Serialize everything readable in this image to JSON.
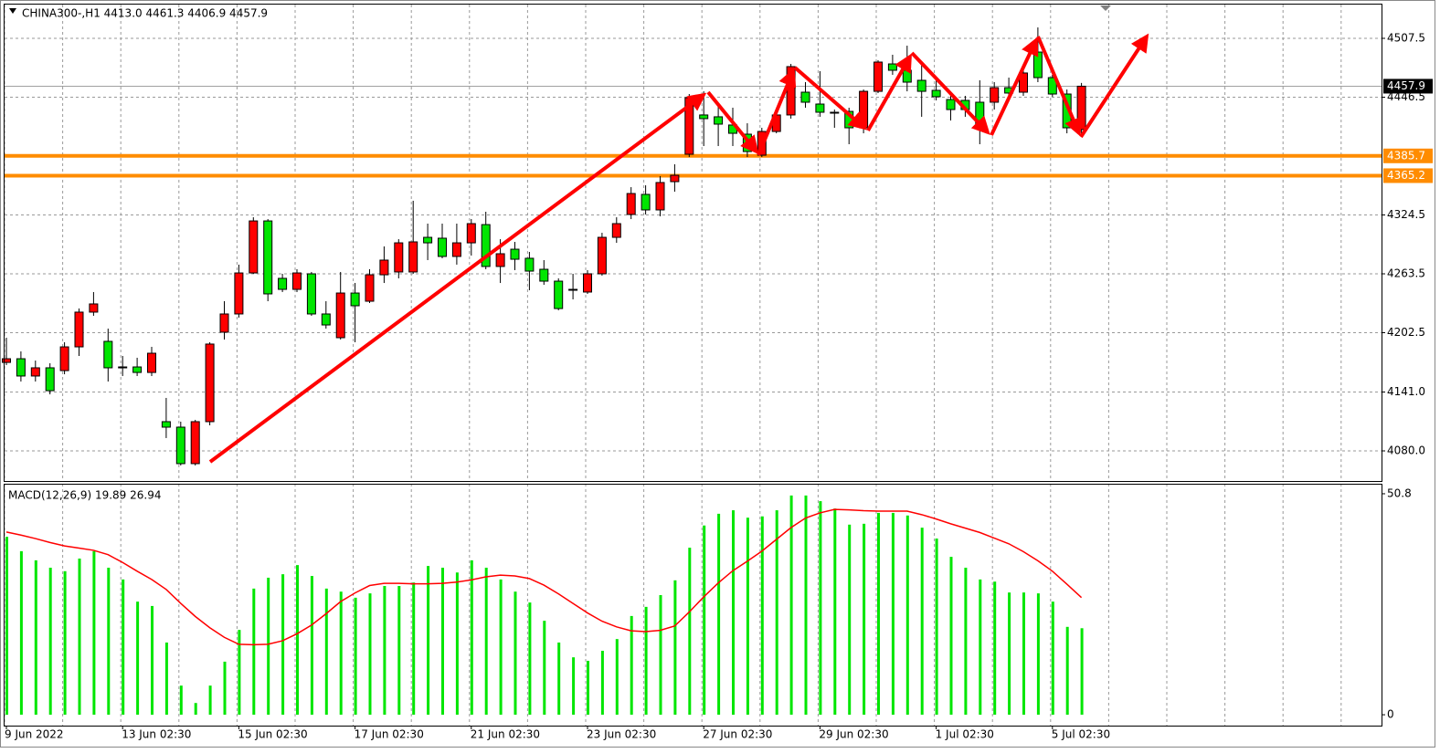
{
  "chart_data": [
    {
      "type": "candlestick",
      "title": "CHINA300-,H1  4413.0 4461.3 4406.9 4457.9",
      "categories": [
        "9 Jun 2022",
        null,
        null,
        null,
        null,
        null,
        null,
        null,
        "13 Jun 02:30",
        null,
        null,
        null,
        null,
        null,
        null,
        null,
        "15 Jun 02:30",
        null,
        null,
        null,
        null,
        null,
        null,
        null,
        "17 Jun 02:30",
        null,
        null,
        null,
        null,
        null,
        null,
        null,
        "21 Jun 02:30",
        null,
        null,
        null,
        null,
        null,
        null,
        null,
        "23 Jun 02:30",
        null,
        null,
        null,
        null,
        null,
        null,
        null,
        "27 Jun 02:30",
        null,
        null,
        null,
        null,
        null,
        null,
        null,
        "29 Jun 02:30",
        null,
        null,
        null,
        null,
        null,
        null,
        null,
        "1 Jul 02:30",
        null,
        null,
        null,
        null,
        null,
        null,
        null,
        "5 Jul 02:30",
        null,
        null
      ],
      "open": [
        4171.7,
        4175.5,
        4157.6,
        4166.1,
        4163.2,
        4187.8,
        4223.8,
        4193.5,
        4167.0,
        4167.0,
        4161.3,
        4110.3,
        4104.6,
        4066.8,
        4110.3,
        4203.0,
        4221.9,
        4264.4,
        4318.3,
        4258.8,
        4247.4,
        4263.5,
        4221.9,
        4197.3,
        4243.6,
        4235.1,
        4262.5,
        4265.4,
        4265.4,
        4301.3,
        4300.4,
        4281.5,
        4295.6,
        4314.5,
        4271.1,
        4289.0,
        4279.6,
        4268.2,
        4255.9,
        4246.5,
        4244.6,
        4263.5,
        4301.3,
        4325.0,
        4345.8,
        4329.7,
        4359.0,
        4387.4,
        4428.1,
        4426.2,
        4417.7,
        4408.2,
        4386.4,
        4411.0,
        4428.1,
        4451.7,
        4439.4,
        4430.9,
        4431.8,
        4414.8,
        4452.6,
        4481.0,
        4474.4,
        4464.0,
        4453.6,
        4444.1,
        4443.2,
        4441.3,
        4441.3,
        4456.4,
        4451.7,
        4493.3,
        4466.8,
        4449.8,
        4413.0
      ],
      "high": [
        4197.3,
        4183.1,
        4173.6,
        4170.8,
        4192.6,
        4227.5,
        4244.6,
        4206.7,
        4178.4,
        4176.5,
        4187.8,
        4134.9,
        4110.3,
        4112.2,
        4192.6,
        4235.1,
        4273.0,
        4322.1,
        4320.2,
        4263.5,
        4268.2,
        4265.4,
        4235.1,
        4265.4,
        4254.0,
        4268.2,
        4291.9,
        4299.4,
        4339.2,
        4315.5,
        4315.5,
        4315.5,
        4320.2,
        4327.8,
        4299.4,
        4296.6,
        4286.2,
        4277.7,
        4258.8,
        4263.5,
        4267.3,
        4306.0,
        4322.1,
        4353.3,
        4355.2,
        4364.7,
        4377.0,
        4449.8,
        4452.6,
        4438.5,
        4435.6,
        4419.5,
        4414.8,
        4433.7,
        4481.0,
        4462.1,
        4473.5,
        4433.7,
        4435.6,
        4454.5,
        4484.8,
        4490.5,
        4499.9,
        4481.0,
        4466.8,
        4452.6,
        4447.9,
        4464.0,
        4462.1,
        4466.8,
        4476.3,
        4518.8,
        4469.7,
        4454.5,
        4461.3
      ],
      "low": [
        4168.9,
        4151.9,
        4151.9,
        4138.6,
        4159.4,
        4178.4,
        4220.0,
        4151.9,
        4157.6,
        4157.6,
        4157.6,
        4093.3,
        4064.9,
        4064.9,
        4106.5,
        4195.4,
        4218.1,
        4263.5,
        4235.1,
        4244.6,
        4244.6,
        4220.0,
        4206.7,
        4195.4,
        4192.6,
        4233.2,
        4254.0,
        4258.8,
        4263.5,
        4277.7,
        4279.6,
        4273.0,
        4282.4,
        4268.2,
        4254.0,
        4267.3,
        4246.5,
        4252.1,
        4225.7,
        4237.0,
        4242.7,
        4261.6,
        4295.6,
        4320.2,
        4325.0,
        4323.1,
        4348.6,
        4384.5,
        4395.9,
        4395.9,
        4395.9,
        4384.5,
        4384.5,
        4409.1,
        4424.3,
        4435.6,
        4426.2,
        4414.8,
        4397.8,
        4409.1,
        4450.8,
        4469.7,
        4452.6,
        4426.2,
        4443.2,
        4422.4,
        4426.2,
        4397.8,
        4433.7,
        4447.9,
        4447.9,
        4462.1,
        4447.0,
        4409.1,
        4406.9
      ],
      "close": [
        4175.5,
        4157.6,
        4166.1,
        4142.4,
        4187.8,
        4223.8,
        4232.3,
        4166.1,
        4166.1,
        4161.3,
        4181.2,
        4104.6,
        4066.8,
        4110.3,
        4190.7,
        4221.9,
        4264.4,
        4318.3,
        4242.7,
        4247.4,
        4264.4,
        4221.9,
        4210.5,
        4243.6,
        4230.4,
        4262.5,
        4277.7,
        4295.6,
        4296.6,
        4295.6,
        4281.5,
        4295.6,
        4315.5,
        4271.1,
        4284.3,
        4278.6,
        4266.3,
        4255.9,
        4227.5,
        4247.4,
        4263.5,
        4301.3,
        4315.5,
        4346.7,
        4329.7,
        4358.1,
        4365.6,
        4446.0,
        4424.3,
        4418.6,
        4409.1,
        4390.2,
        4411.0,
        4428.1,
        4478.2,
        4441.3,
        4430.9,
        4430.9,
        4414.8,
        4452.6,
        4482.9,
        4474.4,
        4462.1,
        4452.6,
        4447.0,
        4433.7,
        4433.7,
        4414.8,
        4456.4,
        4450.8,
        4471.6,
        4466.8,
        4449.8,
        4414.8,
        4457.9
      ],
      "up_color": "#ff0000",
      "down_color": "#00e600",
      "ylim": [
        4048.8,
        4542.5
      ],
      "yticks": [
        4507.5,
        4446.5,
        4324.5,
        4263.5,
        4202.5,
        {
          "value": 4141.0,
          "label": "4141.0"
        },
        {
          "value": 4080.0,
          "label": "4080.0"
        }
      ],
      "hlines": [
        {
          "value": 4457.9,
          "color": "#a0a0a0",
          "label_color": "#000000"
        },
        {
          "value": 4385.7,
          "color": "#ff8c00",
          "label_color": "#ff8c00"
        },
        {
          "value": 4365.2,
          "color": "#ff8c00",
          "label_color": "#ff8c00"
        }
      ],
      "grid": true
    },
    {
      "type": "macd",
      "title": "MACD(12,26,9) 19.89 26.94",
      "histogram": [
        40.9,
        37.6,
        35.5,
        33.8,
        33.0,
        35.9,
        37.6,
        33.8,
        31.1,
        26.0,
        25.0,
        16.6,
        6.7,
        2.7,
        6.7,
        12.2,
        19.5,
        29.0,
        31.5,
        32.3,
        34.4,
        31.9,
        29.0,
        28.3,
        26.9,
        27.9,
        29.6,
        29.6,
        30.4,
        34.2,
        33.8,
        32.7,
        35.5,
        33.8,
        31.1,
        28.3,
        25.8,
        21.6,
        16.6,
        13.2,
        12.4,
        14.7,
        17.4,
        22.7,
        24.8,
        27.5,
        30.9,
        38.4,
        43.5,
        46.2,
        47.0,
        45.3,
        45.6,
        47.0,
        50.4,
        50.4,
        49.1,
        47.4,
        43.7,
        43.9,
        46.4,
        46.4,
        45.8,
        43.0,
        40.5,
        36.3,
        33.8,
        31.1,
        30.6,
        28.1,
        28.1,
        27.9,
        26.0,
        20.2,
        19.89
      ],
      "signal": [
        42.0,
        41.3,
        40.5,
        39.6,
        38.8,
        38.3,
        37.8,
        36.8,
        35.0,
        33.0,
        31.1,
        28.8,
        25.6,
        22.6,
        20.0,
        17.8,
        16.2,
        16.1,
        16.2,
        17.0,
        18.6,
        20.6,
        23.2,
        26.0,
        28.0,
        29.7,
        30.2,
        30.2,
        30.1,
        30.1,
        30.2,
        30.5,
        31.0,
        31.7,
        32.1,
        31.9,
        31.3,
        29.8,
        27.8,
        25.6,
        23.4,
        21.5,
        20.2,
        19.3,
        19.1,
        19.4,
        20.4,
        23.6,
        27.1,
        30.3,
        33.1,
        35.3,
        37.6,
        40.3,
        43.0,
        45.2,
        46.4,
        47.2,
        47.1,
        46.9,
        46.8,
        46.8,
        46.8,
        46.0,
        45.0,
        43.9,
        42.9,
        41.9,
        40.6,
        39.3,
        37.5,
        35.4,
        33.0,
        30.0,
        26.94
      ],
      "histogram_color": "#00e600",
      "signal_color": "#ff0000",
      "ylim": [
        -2.5,
        53.1
      ],
      "yticks": [
        50.8,
        0
      ]
    }
  ]
}
